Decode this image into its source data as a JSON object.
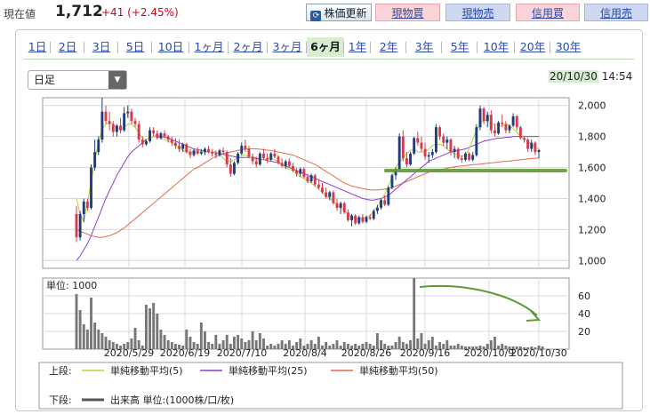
{
  "header": {
    "price_label": "現在値",
    "price_value": "1,712",
    "price_change": "+41 (+2.45%)",
    "refresh_label": "株価更新",
    "refresh_icon": "refresh-icon",
    "buttons": [
      "現物買",
      "現物売",
      "信用買",
      "信用売"
    ]
  },
  "period_tabs": [
    "1日",
    "2日",
    "3日",
    "5日",
    "10日",
    "1ヶ月",
    "2ヶ月",
    "3ヶ月",
    "6ヶ月",
    "1年",
    "2年",
    "3年",
    "5年",
    "10年",
    "20年",
    "30年"
  ],
  "active_tab": "6ヶ月",
  "interval_select": "日足",
  "datetime": {
    "date": "20/10/30",
    "time": "14:54"
  },
  "legend": {
    "upper_label": "上段:",
    "lower_label": "下段:",
    "items": [
      {
        "label": "単純移動平均(5)",
        "color": "#b5d334"
      },
      {
        "label": "単純移動平均(25)",
        "color": "#8c3fd0"
      },
      {
        "label": "単純移動平均(50)",
        "color": "#e06a4a"
      }
    ],
    "volume_label": "出来高 単位:(1000株/口/枚)"
  },
  "colors": {
    "up": "#1f3d7a",
    "down": "#d83a4a",
    "volume": "#777777",
    "annotation": "#5f9b35"
  },
  "chart_data": [
    {
      "type": "candlestick",
      "title": "",
      "ylim": [
        950,
        2050
      ],
      "yticks": [
        1000,
        1200,
        1400,
        1600,
        1800,
        2000
      ],
      "ytick_labels": [
        "1,000",
        "1,200",
        "1,400",
        "1,600",
        "1,800",
        "2,000"
      ],
      "xtick_labels": [
        "2020/5/29",
        "2020/6/19",
        "2020/7/10",
        "2020/8/4",
        "2020/8/26",
        "2020/9/16",
        "2020/10/9",
        "2020/10/30"
      ],
      "candles": [
        [
          1300,
          1350,
          1120,
          1150
        ],
        [
          1150,
          1320,
          1130,
          1300
        ],
        [
          1300,
          1400,
          1250,
          1380
        ],
        [
          1380,
          1400,
          1320,
          1340
        ],
        [
          1340,
          1620,
          1330,
          1600
        ],
        [
          1600,
          1780,
          1580,
          1700
        ],
        [
          1700,
          1800,
          1680,
          1780
        ],
        [
          1780,
          2050,
          1760,
          1960
        ],
        [
          1960,
          2000,
          1880,
          1900
        ],
        [
          1900,
          1960,
          1840,
          1880
        ],
        [
          1880,
          1900,
          1800,
          1830
        ],
        [
          1830,
          1880,
          1800,
          1870
        ],
        [
          1870,
          1920,
          1820,
          1840
        ],
        [
          1840,
          1990,
          1830,
          1950
        ],
        [
          1950,
          2000,
          1920,
          1960
        ],
        [
          1960,
          1980,
          1880,
          1900
        ],
        [
          1900,
          1920,
          1860,
          1880
        ],
        [
          1880,
          1900,
          1760,
          1780
        ],
        [
          1780,
          1800,
          1730,
          1750
        ],
        [
          1750,
          1780,
          1740,
          1770
        ],
        [
          1770,
          1860,
          1760,
          1840
        ],
        [
          1840,
          1860,
          1800,
          1820
        ],
        [
          1820,
          1840,
          1780,
          1790
        ],
        [
          1790,
          1830,
          1780,
          1820
        ],
        [
          1820,
          1840,
          1790,
          1800
        ],
        [
          1800,
          1810,
          1760,
          1780
        ],
        [
          1780,
          1800,
          1740,
          1760
        ],
        [
          1760,
          1790,
          1720,
          1740
        ],
        [
          1740,
          1780,
          1700,
          1720
        ],
        [
          1720,
          1760,
          1700,
          1750
        ],
        [
          1750,
          1760,
          1690,
          1700
        ],
        [
          1700,
          1720,
          1660,
          1680
        ],
        [
          1680,
          1720,
          1670,
          1710
        ],
        [
          1710,
          1730,
          1680,
          1690
        ],
        [
          1690,
          1720,
          1680,
          1700
        ],
        [
          1700,
          1730,
          1680,
          1720
        ],
        [
          1720,
          1740,
          1690,
          1700
        ],
        [
          1700,
          1720,
          1670,
          1690
        ],
        [
          1690,
          1710,
          1660,
          1680
        ],
        [
          1680,
          1720,
          1670,
          1710
        ],
        [
          1710,
          1730,
          1690,
          1700
        ],
        [
          1700,
          1710,
          1600,
          1620
        ],
        [
          1620,
          1660,
          1540,
          1560
        ],
        [
          1560,
          1640,
          1550,
          1630
        ],
        [
          1630,
          1700,
          1620,
          1690
        ],
        [
          1690,
          1760,
          1680,
          1740
        ],
        [
          1740,
          1780,
          1700,
          1720
        ],
        [
          1720,
          1740,
          1660,
          1670
        ],
        [
          1670,
          1690,
          1620,
          1640
        ],
        [
          1640,
          1670,
          1600,
          1620
        ],
        [
          1620,
          1700,
          1610,
          1690
        ],
        [
          1690,
          1720,
          1650,
          1660
        ],
        [
          1660,
          1690,
          1630,
          1650
        ],
        [
          1650,
          1700,
          1640,
          1690
        ],
        [
          1690,
          1720,
          1660,
          1670
        ],
        [
          1670,
          1680,
          1620,
          1630
        ],
        [
          1630,
          1660,
          1600,
          1610
        ],
        [
          1610,
          1650,
          1590,
          1640
        ],
        [
          1640,
          1660,
          1600,
          1610
        ],
        [
          1610,
          1630,
          1570,
          1580
        ],
        [
          1580,
          1600,
          1540,
          1560
        ],
        [
          1560,
          1600,
          1540,
          1590
        ],
        [
          1590,
          1600,
          1530,
          1540
        ],
        [
          1540,
          1560,
          1500,
          1510
        ],
        [
          1510,
          1560,
          1500,
          1550
        ],
        [
          1550,
          1560,
          1480,
          1490
        ],
        [
          1490,
          1520,
          1460,
          1470
        ],
        [
          1470,
          1500,
          1430,
          1440
        ],
        [
          1440,
          1470,
          1400,
          1410
        ],
        [
          1410,
          1450,
          1390,
          1440
        ],
        [
          1440,
          1450,
          1360,
          1370
        ],
        [
          1370,
          1400,
          1320,
          1340
        ],
        [
          1340,
          1380,
          1300,
          1370
        ],
        [
          1370,
          1380,
          1300,
          1310
        ],
        [
          1310,
          1330,
          1250,
          1260
        ],
        [
          1260,
          1300,
          1220,
          1290
        ],
        [
          1290,
          1300,
          1230,
          1240
        ],
        [
          1240,
          1290,
          1230,
          1280
        ],
        [
          1280,
          1300,
          1240,
          1250
        ],
        [
          1250,
          1290,
          1240,
          1280
        ],
        [
          1280,
          1300,
          1260,
          1270
        ],
        [
          1270,
          1330,
          1260,
          1320
        ],
        [
          1320,
          1360,
          1300,
          1340
        ],
        [
          1340,
          1400,
          1330,
          1390
        ],
        [
          1390,
          1420,
          1350,
          1360
        ],
        [
          1360,
          1480,
          1350,
          1470
        ],
        [
          1470,
          1560,
          1460,
          1550
        ],
        [
          1550,
          1600,
          1520,
          1590
        ],
        [
          1590,
          1820,
          1580,
          1800
        ],
        [
          1800,
          1840,
          1640,
          1660
        ],
        [
          1660,
          1700,
          1600,
          1620
        ],
        [
          1620,
          1700,
          1610,
          1690
        ],
        [
          1690,
          1800,
          1680,
          1790
        ],
        [
          1790,
          1830,
          1740,
          1760
        ],
        [
          1760,
          1800,
          1700,
          1720
        ],
        [
          1720,
          1760,
          1650,
          1670
        ],
        [
          1670,
          1700,
          1630,
          1680
        ],
        [
          1680,
          1720,
          1660,
          1700
        ],
        [
          1700,
          1880,
          1690,
          1860
        ],
        [
          1860,
          1870,
          1780,
          1800
        ],
        [
          1800,
          1820,
          1740,
          1760
        ],
        [
          1760,
          1800,
          1720,
          1780
        ],
        [
          1780,
          1790,
          1680,
          1700
        ],
        [
          1700,
          1740,
          1660,
          1720
        ],
        [
          1720,
          1730,
          1650,
          1660
        ],
        [
          1660,
          1680,
          1630,
          1650
        ],
        [
          1650,
          1700,
          1640,
          1690
        ],
        [
          1690,
          1700,
          1640,
          1650
        ],
        [
          1650,
          1700,
          1640,
          1680
        ],
        [
          1680,
          1880,
          1670,
          1860
        ],
        [
          1860,
          2000,
          1840,
          1980
        ],
        [
          1980,
          1990,
          1880,
          1900
        ],
        [
          1900,
          1960,
          1860,
          1940
        ],
        [
          1940,
          1970,
          1820,
          1840
        ],
        [
          1840,
          1880,
          1800,
          1820
        ],
        [
          1820,
          1900,
          1810,
          1890
        ],
        [
          1890,
          1940,
          1860,
          1880
        ],
        [
          1880,
          1900,
          1820,
          1840
        ],
        [
          1840,
          1880,
          1820,
          1870
        ],
        [
          1870,
          1950,
          1860,
          1930
        ],
        [
          1930,
          1940,
          1840,
          1860
        ],
        [
          1860,
          1870,
          1780,
          1790
        ],
        [
          1790,
          1800,
          1760,
          1780
        ],
        [
          1780,
          1790,
          1700,
          1720
        ],
        [
          1720,
          1780,
          1700,
          1760
        ],
        [
          1760,
          1770,
          1680,
          1700
        ],
        [
          1700,
          1720,
          1660,
          1712
        ]
      ],
      "sma5": [
        1400,
        1300,
        1250,
        1380,
        1500,
        1650,
        1760,
        1850,
        1880,
        1890,
        1880,
        1850,
        1850,
        1860,
        1880,
        1880,
        1860,
        1820,
        1790,
        1780,
        1790,
        1800,
        1800,
        1790,
        1780,
        1770,
        1760,
        1740,
        1720,
        1710,
        1700,
        1700,
        1700,
        1700,
        1700,
        1700,
        1700,
        1700,
        1700,
        1690,
        1660,
        1640,
        1640,
        1650,
        1670,
        1680,
        1680,
        1670,
        1660,
        1650,
        1650,
        1650,
        1660,
        1660,
        1650,
        1640,
        1620,
        1600,
        1590,
        1580,
        1560,
        1540,
        1530,
        1510,
        1500,
        1480,
        1460,
        1440,
        1420,
        1400,
        1380,
        1360,
        1340,
        1320,
        1300,
        1280,
        1270,
        1270,
        1270,
        1280,
        1290,
        1320,
        1350,
        1390,
        1430,
        1480,
        1540,
        1600,
        1640,
        1660,
        1690,
        1710,
        1720,
        1700,
        1700,
        1700,
        1720,
        1740,
        1750,
        1750,
        1740,
        1720,
        1700,
        1690,
        1680,
        1670,
        1680,
        1720,
        1780,
        1840,
        1880,
        1910,
        1900,
        1880,
        1880,
        1870,
        1870,
        1880,
        1870,
        1850,
        1830,
        1800,
        1780,
        1770,
        1750,
        1730,
        1720
      ],
      "sma25": [
        1000,
        1030,
        1070,
        1110,
        1160,
        1220,
        1280,
        1340,
        1400,
        1450,
        1500,
        1550,
        1590,
        1630,
        1670,
        1700,
        1720,
        1740,
        1760,
        1780,
        1790,
        1800,
        1805,
        1800,
        1795,
        1790,
        1780,
        1770,
        1760,
        1750,
        1740,
        1730,
        1720,
        1715,
        1710,
        1705,
        1700,
        1700,
        1695,
        1690,
        1685,
        1680,
        1675,
        1670,
        1665,
        1665,
        1665,
        1665,
        1665,
        1660,
        1655,
        1650,
        1645,
        1640,
        1635,
        1630,
        1620,
        1610,
        1600,
        1590,
        1580,
        1570,
        1560,
        1550,
        1540,
        1530,
        1520,
        1510,
        1500,
        1490,
        1480,
        1470,
        1460,
        1450,
        1440,
        1430,
        1420,
        1410,
        1400,
        1395,
        1390,
        1390,
        1395,
        1400,
        1410,
        1420,
        1440,
        1460,
        1480,
        1500,
        1520,
        1540,
        1560,
        1580,
        1600,
        1620,
        1640,
        1650,
        1660,
        1670,
        1680,
        1690,
        1700,
        1705,
        1710,
        1715,
        1720,
        1730,
        1740,
        1750,
        1760,
        1770,
        1775,
        1780,
        1785,
        1790,
        1790,
        1795,
        1795,
        1800,
        1800,
        1800,
        1800,
        1800,
        1800,
        1800,
        1800
      ],
      "sma50": [
        1200,
        1190,
        1180,
        1170,
        1160,
        1155,
        1150,
        1150,
        1155,
        1160,
        1170,
        1180,
        1195,
        1210,
        1230,
        1250,
        1270,
        1290,
        1310,
        1330,
        1350,
        1370,
        1390,
        1410,
        1430,
        1450,
        1470,
        1490,
        1510,
        1530,
        1550,
        1570,
        1590,
        1600,
        1615,
        1630,
        1645,
        1660,
        1670,
        1680,
        1690,
        1695,
        1700,
        1705,
        1710,
        1715,
        1718,
        1720,
        1722,
        1720,
        1718,
        1715,
        1712,
        1710,
        1705,
        1700,
        1695,
        1690,
        1685,
        1680,
        1670,
        1660,
        1650,
        1640,
        1630,
        1620,
        1605,
        1590,
        1575,
        1560,
        1545,
        1530,
        1515,
        1500,
        1490,
        1480,
        1475,
        1470,
        1465,
        1460,
        1455,
        1455,
        1455,
        1458,
        1460,
        1465,
        1470,
        1480,
        1490,
        1500,
        1510,
        1520,
        1530,
        1540,
        1550,
        1560,
        1570,
        1575,
        1580,
        1585,
        1590,
        1595,
        1600,
        1605,
        1608,
        1610,
        1612,
        1615,
        1618,
        1620,
        1622,
        1625,
        1628,
        1630,
        1632,
        1635,
        1638,
        1640,
        1642,
        1645,
        1648,
        1650,
        1652,
        1655,
        1658,
        1660,
        1662
      ]
    },
    {
      "type": "bar",
      "title": "",
      "unit_label": "単位: 1000",
      "ylim": [
        0,
        80
      ],
      "yticks": [
        20,
        40,
        60
      ],
      "ytick_labels": [
        "20",
        "40",
        "60"
      ],
      "values": [
        62,
        44,
        28,
        22,
        58,
        30,
        22,
        18,
        14,
        10,
        8,
        6,
        4,
        6,
        8,
        12,
        24,
        10,
        4,
        50,
        46,
        52,
        40,
        22,
        16,
        10,
        8,
        6,
        5,
        4,
        22,
        14,
        8,
        6,
        30,
        20,
        8,
        6,
        16,
        6,
        10,
        16,
        6,
        14,
        16,
        12,
        8,
        10,
        20,
        10,
        18,
        12,
        4,
        6,
        4,
        6,
        10,
        6,
        10,
        4,
        8,
        12,
        4,
        6,
        10,
        6,
        14,
        4,
        8,
        4,
        6,
        10,
        4,
        8,
        6,
        4,
        6,
        4,
        6,
        8,
        6,
        4,
        18,
        10,
        6,
        4,
        4,
        8,
        14,
        8,
        6,
        10,
        80,
        12,
        18,
        6,
        10,
        14,
        4,
        8,
        6,
        10,
        4,
        4,
        6,
        4,
        3,
        3,
        3,
        3,
        4,
        3,
        6,
        10,
        14,
        4,
        6,
        4,
        3,
        3,
        3,
        3,
        2,
        2,
        3,
        2,
        4,
        3
      ]
    }
  ]
}
